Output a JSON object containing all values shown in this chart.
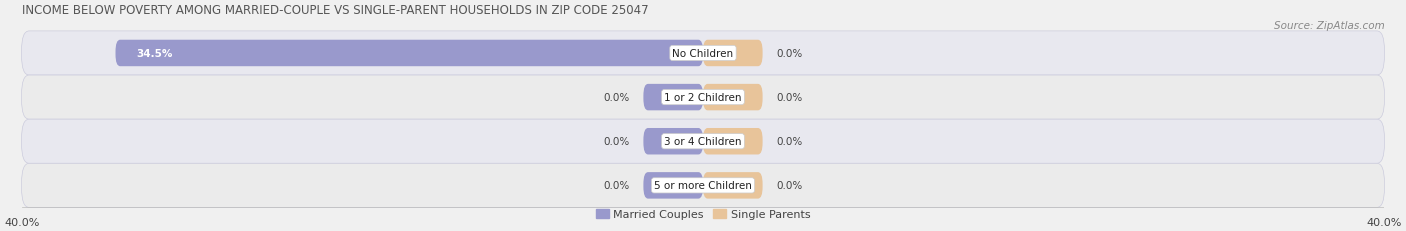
{
  "title": "INCOME BELOW POVERTY AMONG MARRIED-COUPLE VS SINGLE-PARENT HOUSEHOLDS IN ZIP CODE 25047",
  "source": "Source: ZipAtlas.com",
  "categories": [
    "No Children",
    "1 or 2 Children",
    "3 or 4 Children",
    "5 or more Children"
  ],
  "married_values": [
    34.5,
    0.0,
    0.0,
    0.0
  ],
  "single_values": [
    0.0,
    0.0,
    0.0,
    0.0
  ],
  "married_color": "#9999cc",
  "single_color": "#e8c49a",
  "row_bg_even": "#e8e8ef",
  "row_bg_odd": "#ebebeb",
  "row_border_color": "#ccccdd",
  "xlim": 40.0,
  "min_bar_width": 3.5,
  "title_fontsize": 8.5,
  "source_fontsize": 7.5,
  "value_fontsize": 7.5,
  "cat_fontsize": 7.5,
  "tick_fontsize": 8,
  "legend_fontsize": 8,
  "bar_height": 0.6,
  "background_color": "#f0f0f0",
  "text_color": "#444444"
}
